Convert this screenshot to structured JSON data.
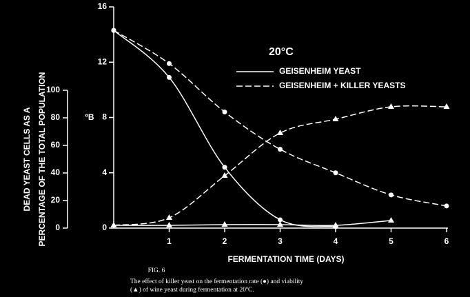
{
  "chart_data": {
    "type": "line",
    "subtitle": "20°C",
    "x": [
      0,
      1,
      2,
      3,
      4,
      5,
      6
    ],
    "xlim": [
      0,
      6
    ],
    "xticks": [
      1,
      2,
      3,
      4,
      5,
      6
    ],
    "xlabel": "FERMENTATION TIME (DAYS)",
    "ylim": [
      0,
      16
    ],
    "yticks": [
      0,
      4,
      8,
      12,
      16
    ],
    "ylabel": "ºB",
    "y2lim": [
      0,
      100
    ],
    "y2ticks": [
      0,
      20,
      40,
      60,
      80,
      100
    ],
    "y2label": [
      "DEAD YEAST CELLS AS A",
      "PERCENTAGE OF THE TOTAL POPULATION"
    ],
    "series": [
      {
        "name": "GEISENHEIM YEAST",
        "color": "#ffffff",
        "dash": "solid",
        "marker": "circle",
        "values": [
          14.3,
          10.9,
          4.4,
          0.6,
          0.1,
          null,
          null
        ]
      },
      {
        "name": "GEISENHEIM + KILLER YEASTS",
        "color": "#ffffff",
        "dash": "dashed",
        "marker": "circle",
        "values": [
          14.3,
          11.9,
          8.4,
          5.7,
          4.0,
          2.4,
          1.6
        ]
      },
      {
        "name": "GEISENHEIM YEAST",
        "color": "#ffffff",
        "dash": "solid",
        "marker": "triangle",
        "axis": "y2",
        "values": [
          2,
          2,
          2.5,
          2.5,
          2,
          5.5,
          null
        ]
      },
      {
        "name": "GEISENHEIM + KILLER YEASTS",
        "color": "#ffffff",
        "dash": "dashed",
        "marker": "triangle",
        "axis": "y2",
        "values": [
          2,
          7.5,
          38,
          69,
          79,
          88,
          88
        ]
      }
    ],
    "figure_label": "FIG. 6",
    "caption": [
      "The effect of killer yeast on the fermentation rate (●) and viability",
      "(▲) of wine yeast during fermentation at 20ºC."
    ]
  }
}
